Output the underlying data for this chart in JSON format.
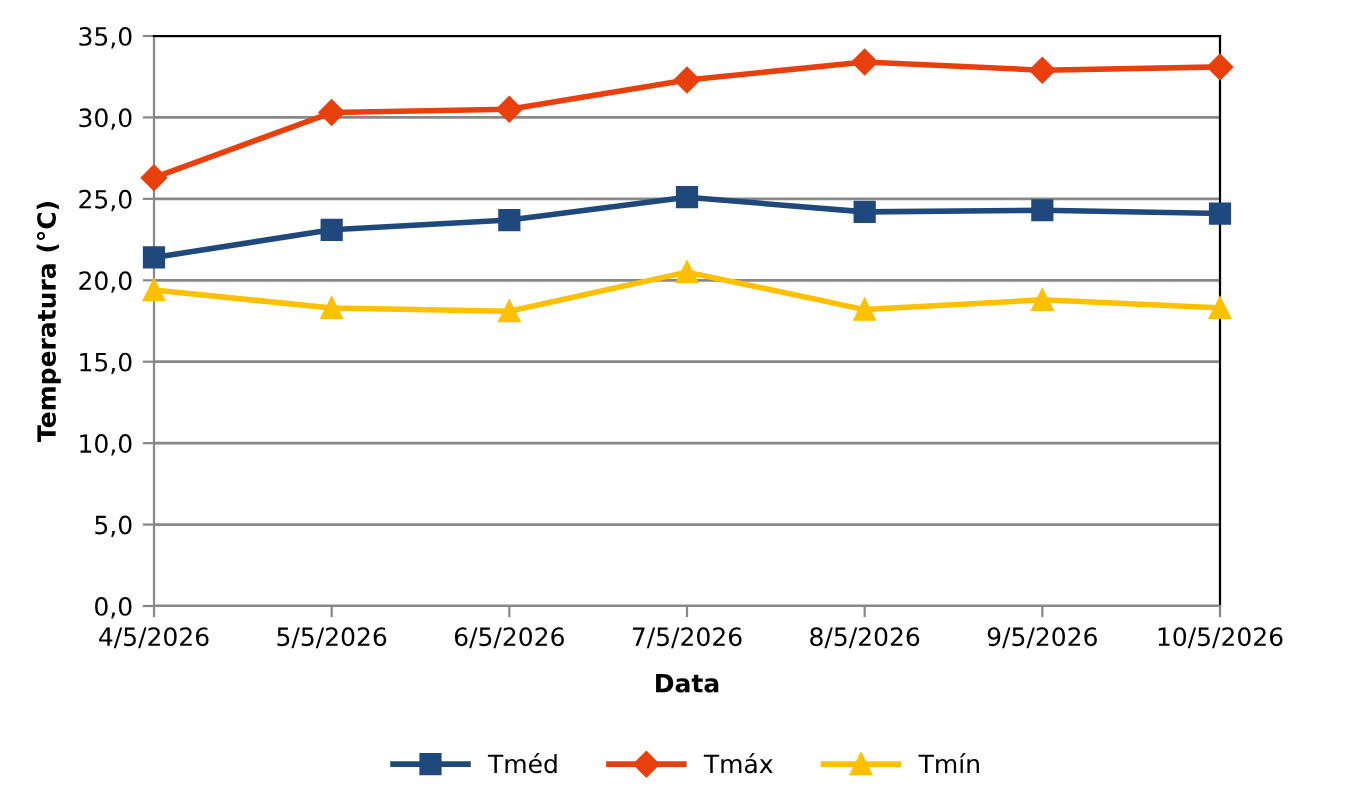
{
  "chart_data": {
    "type": "line",
    "xlabel": "Data",
    "ylabel": "Temperatura (°C)",
    "categories": [
      "4/5/2026",
      "5/5/2026",
      "6/5/2026",
      "7/5/2026",
      "8/5/2026",
      "9/5/2026",
      "10/5/2026"
    ],
    "series": [
      {
        "name": "Tméd",
        "color": "#1f497d",
        "marker": "square",
        "values": [
          21.4,
          23.1,
          23.7,
          25.1,
          24.2,
          24.3,
          24.1
        ]
      },
      {
        "name": "Tmáx",
        "color": "#e8400c",
        "marker": "diamond",
        "values": [
          26.3,
          30.3,
          30.5,
          32.3,
          33.4,
          32.9,
          33.1
        ]
      },
      {
        "name": "Tmín",
        "color": "#ffc000",
        "marker": "triangle",
        "values": [
          19.4,
          18.3,
          18.1,
          20.5,
          18.2,
          18.8,
          18.3
        ]
      }
    ],
    "ylim": [
      0,
      35
    ],
    "yticks": [
      {
        "value": 0,
        "label": "0,0"
      },
      {
        "value": 5,
        "label": "5,0"
      },
      {
        "value": 10,
        "label": "10,0"
      },
      {
        "value": 15,
        "label": "15,0"
      },
      {
        "value": 20,
        "label": "20,0"
      },
      {
        "value": 25,
        "label": "25,0"
      },
      {
        "value": 30,
        "label": "30,0"
      },
      {
        "value": 35,
        "label": "35,0"
      }
    ],
    "grid": "y",
    "legend": "bottom",
    "line_style": "solid"
  }
}
